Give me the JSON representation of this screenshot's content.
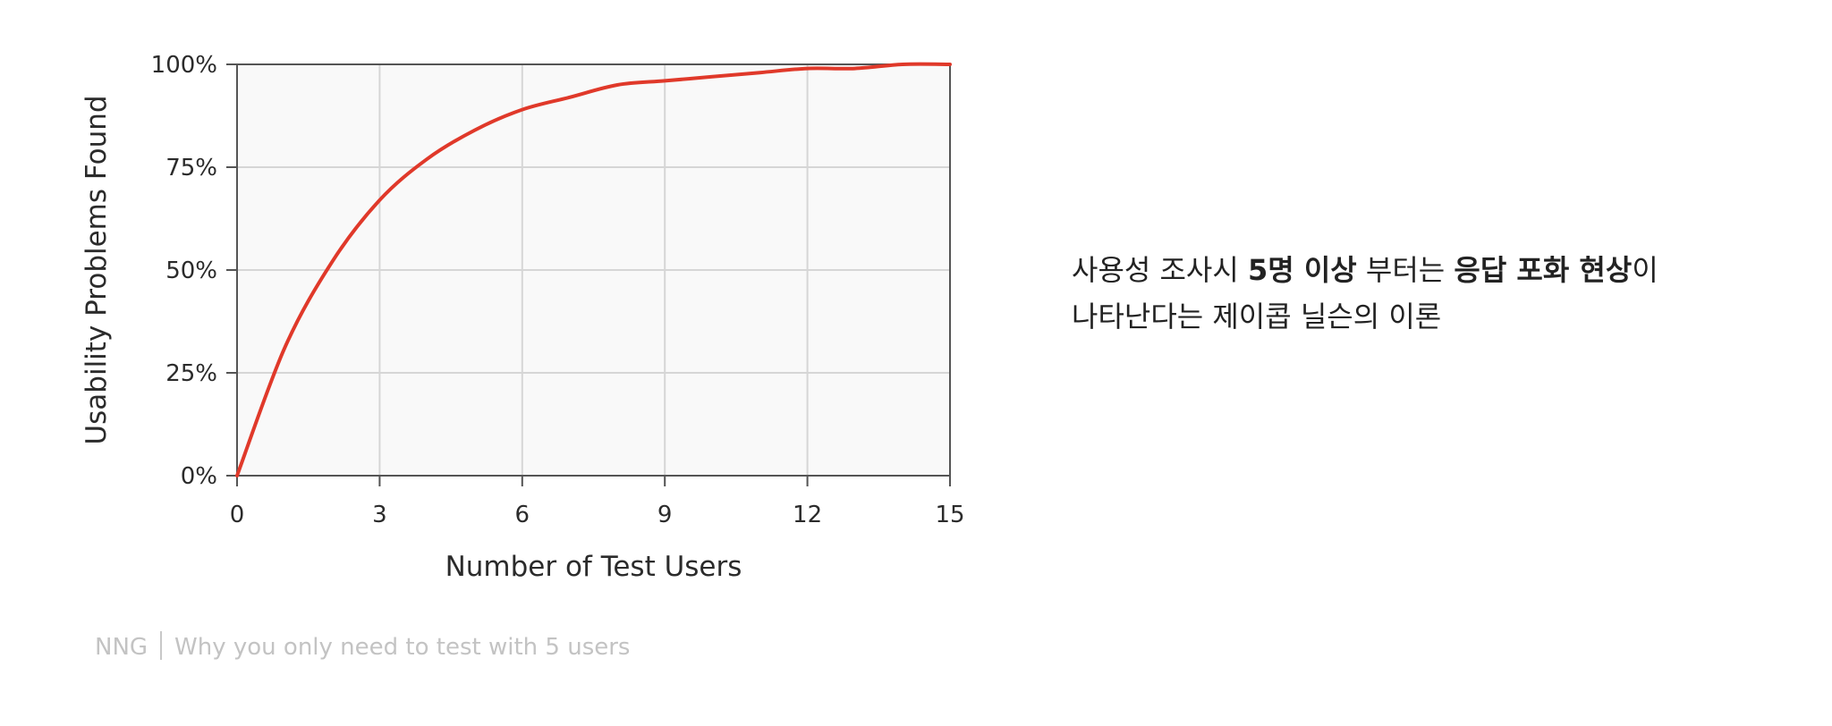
{
  "chart_data": {
    "type": "line",
    "title": "",
    "xlabel": "Number of Test Users",
    "ylabel": "Usability Problems Found",
    "xlim": [
      0,
      15
    ],
    "ylim": [
      0,
      100
    ],
    "x_ticks": [
      "0",
      "3",
      "6",
      "9",
      "12",
      "15"
    ],
    "y_ticks": [
      "0%",
      "25%",
      "50%",
      "75%",
      "100%"
    ],
    "grid": true,
    "legend": "none",
    "series": [
      {
        "color": "#e0392a",
        "x": [
          0,
          1,
          2,
          3,
          4,
          5,
          6,
          7,
          8,
          9,
          10,
          11,
          12,
          13,
          14,
          15
        ],
        "y": [
          0,
          31,
          52,
          67,
          77,
          84,
          89,
          92,
          95,
          96,
          97,
          98,
          99,
          99,
          100,
          100
        ]
      }
    ],
    "colors": {
      "plot_background": "#f9f9f9",
      "grid": "#d6d6d6",
      "axis": "#555555"
    }
  },
  "caption": {
    "source": "NNG",
    "text": "Why you only need to test with 5 users"
  },
  "description": {
    "line1_part1": "사용성 조사시 ",
    "line1_bold1": "5명 이상",
    "line1_part2": " 부터는 ",
    "line1_bold2": "응답 포화 현상",
    "line1_part3": "이",
    "line2": "나타난다는 제이콥 닐슨의 이론"
  }
}
